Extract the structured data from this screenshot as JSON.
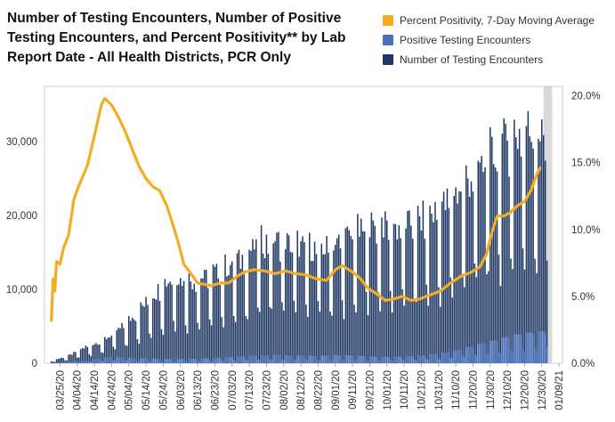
{
  "title": "Number of Testing Encounters, Number of Positive Testing Encounters, and Percent Positivity** by Lab Report Date - All Health Districts, PCR Only",
  "legend": [
    {
      "label": "Percent Positivity, 7-Day Moving Average",
      "color": "#F4AC25"
    },
    {
      "label": "Positive Testing Encounters",
      "color": "#4A70B8"
    },
    {
      "label": "Number of Testing Encounters",
      "color": "#1F3864"
    }
  ],
  "chart_data": {
    "type": "bar",
    "title": "Number of Testing Encounters, Number of Positive Testing Encounters, and Percent Positivity** by Lab Report Date - All Health Districts, PCR Only",
    "x_ticks": [
      "03/25/20",
      "04/04/20",
      "04/14/20",
      "04/24/20",
      "05/04/20",
      "05/14/20",
      "05/24/20",
      "06/03/20",
      "06/13/20",
      "06/23/20",
      "07/03/20",
      "07/13/20",
      "07/23/20",
      "08/02/20",
      "08/12/20",
      "08/22/20",
      "09/01/20",
      "09/11/20",
      "09/21/20",
      "10/01/20",
      "10/11/20",
      "10/21/20",
      "10/31/20",
      "11/10/20",
      "11/20/20",
      "11/30/20",
      "12/10/20",
      "12/20/20",
      "12/30/20",
      "01/09/21"
    ],
    "x_range": [
      "03/16/20",
      "01/11/21"
    ],
    "y_left_ticks": [
      "0",
      "10,000",
      "20,000",
      "30,000"
    ],
    "y_left_range": [
      0,
      37500
    ],
    "y_right_ticks": [
      "0.0%",
      "5.0%",
      "10.0%",
      "15.0%",
      "20.0%"
    ],
    "y_right_range": [
      0,
      20.7
    ],
    "incomplete_period_start": "01/01/21",
    "series": [
      {
        "name": "Number of Testing Encounters",
        "kind": "bar",
        "axis": "left",
        "color": "#1F3864",
        "start": "03/20/20",
        "anchors": [
          [
            "03/20/20",
            300
          ],
          [
            "03/30/20",
            900
          ],
          [
            "04/09/20",
            2000
          ],
          [
            "04/19/20",
            2800
          ],
          [
            "04/29/20",
            4200
          ],
          [
            "05/09/20",
            6200
          ],
          [
            "05/19/20",
            8500
          ],
          [
            "05/29/20",
            10500
          ],
          [
            "06/08/20",
            10000
          ],
          [
            "06/18/20",
            10500
          ],
          [
            "06/28/20",
            11500
          ],
          [
            "07/08/20",
            12500
          ],
          [
            "07/18/20",
            14500
          ],
          [
            "07/28/20",
            15000
          ],
          [
            "08/07/20",
            14500
          ],
          [
            "08/17/20",
            14000
          ],
          [
            "08/27/20",
            14000
          ],
          [
            "09/06/20",
            15000
          ],
          [
            "09/16/20",
            16000
          ],
          [
            "09/26/20",
            17000
          ],
          [
            "10/06/20",
            16500
          ],
          [
            "10/16/20",
            17000
          ],
          [
            "10/26/20",
            18000
          ],
          [
            "11/05/20",
            19500
          ],
          [
            "11/15/20",
            22000
          ],
          [
            "11/25/20",
            24000
          ],
          [
            "12/05/20",
            26000
          ],
          [
            "12/15/20",
            28000
          ],
          [
            "12/25/20",
            28500
          ],
          [
            "01/02/21",
            27000
          ]
        ]
      },
      {
        "name": "Positive Testing Encounters",
        "kind": "bar",
        "axis": "left",
        "color": "#4A70B8",
        "start": "03/20/20",
        "anchors": [
          [
            "03/20/20",
            30
          ],
          [
            "04/09/20",
            300
          ],
          [
            "04/24/20",
            800
          ],
          [
            "05/09/20",
            600
          ],
          [
            "05/29/20",
            500
          ],
          [
            "06/18/20",
            600
          ],
          [
            "07/08/20",
            850
          ],
          [
            "07/28/20",
            1000
          ],
          [
            "08/17/20",
            900
          ],
          [
            "09/06/20",
            1000
          ],
          [
            "09/26/20",
            800
          ],
          [
            "10/16/20",
            850
          ],
          [
            "11/05/20",
            1300
          ],
          [
            "11/25/20",
            2400
          ],
          [
            "12/15/20",
            3500
          ],
          [
            "01/02/21",
            4000
          ]
        ]
      },
      {
        "name": "Percent Positivity, 7-Day Moving Average",
        "kind": "line",
        "axis": "right",
        "color": "#F4AC25",
        "points": [
          [
            "03/20/20",
            3.2
          ],
          [
            "03/21/20",
            6.3
          ],
          [
            "03/22/20",
            5.4
          ],
          [
            "03/23/20",
            7.6
          ],
          [
            "03/25/20",
            7.4
          ],
          [
            "03/27/20",
            8.6
          ],
          [
            "03/30/20",
            9.6
          ],
          [
            "04/02/20",
            12.2
          ],
          [
            "04/05/20",
            13.3
          ],
          [
            "04/08/20",
            14.2
          ],
          [
            "04/10/20",
            14.8
          ],
          [
            "04/14/20",
            17.0
          ],
          [
            "04/18/20",
            19.3
          ],
          [
            "04/20/20",
            19.8
          ],
          [
            "04/24/20",
            19.3
          ],
          [
            "04/28/20",
            18.4
          ],
          [
            "05/02/20",
            17.3
          ],
          [
            "05/06/20",
            16.0
          ],
          [
            "05/10/20",
            14.7
          ],
          [
            "05/14/20",
            13.8
          ],
          [
            "05/18/20",
            13.2
          ],
          [
            "05/22/20",
            12.9
          ],
          [
            "05/26/20",
            11.8
          ],
          [
            "05/30/20",
            10.2
          ],
          [
            "06/02/20",
            8.9
          ],
          [
            "06/05/20",
            7.4
          ],
          [
            "06/09/20",
            6.7
          ],
          [
            "06/13/20",
            6.0
          ],
          [
            "06/17/20",
            5.9
          ],
          [
            "06/21/20",
            5.8
          ],
          [
            "06/26/20",
            6.0
          ],
          [
            "07/01/20",
            6.0
          ],
          [
            "07/06/20",
            6.5
          ],
          [
            "07/10/20",
            6.8
          ],
          [
            "07/16/20",
            7.0
          ],
          [
            "07/22/20",
            6.9
          ],
          [
            "07/28/20",
            6.7
          ],
          [
            "08/03/20",
            6.9
          ],
          [
            "08/09/20",
            6.7
          ],
          [
            "08/15/20",
            6.6
          ],
          [
            "08/21/20",
            6.3
          ],
          [
            "08/27/20",
            6.2
          ],
          [
            "09/01/20",
            7.0
          ],
          [
            "09/05/20",
            7.3
          ],
          [
            "09/10/20",
            6.9
          ],
          [
            "09/15/20",
            6.4
          ],
          [
            "09/20/20",
            5.6
          ],
          [
            "09/25/20",
            5.2
          ],
          [
            "09/30/20",
            4.7
          ],
          [
            "10/05/20",
            4.8
          ],
          [
            "10/10/20",
            5.0
          ],
          [
            "10/15/20",
            4.7
          ],
          [
            "10/20/20",
            4.8
          ],
          [
            "10/26/20",
            5.1
          ],
          [
            "11/01/20",
            5.4
          ],
          [
            "11/07/20",
            6.0
          ],
          [
            "11/13/20",
            6.5
          ],
          [
            "11/19/20",
            6.8
          ],
          [
            "11/24/20",
            7.2
          ],
          [
            "11/28/20",
            8.2
          ],
          [
            "12/01/20",
            9.8
          ],
          [
            "12/04/20",
            11.0
          ],
          [
            "12/08/20",
            11.0
          ],
          [
            "12/12/20",
            11.3
          ],
          [
            "12/16/20",
            11.8
          ],
          [
            "12/20/20",
            12.1
          ],
          [
            "12/24/20",
            13.0
          ],
          [
            "12/27/20",
            14.1
          ],
          [
            "12/29/20",
            14.6
          ]
        ]
      }
    ]
  }
}
